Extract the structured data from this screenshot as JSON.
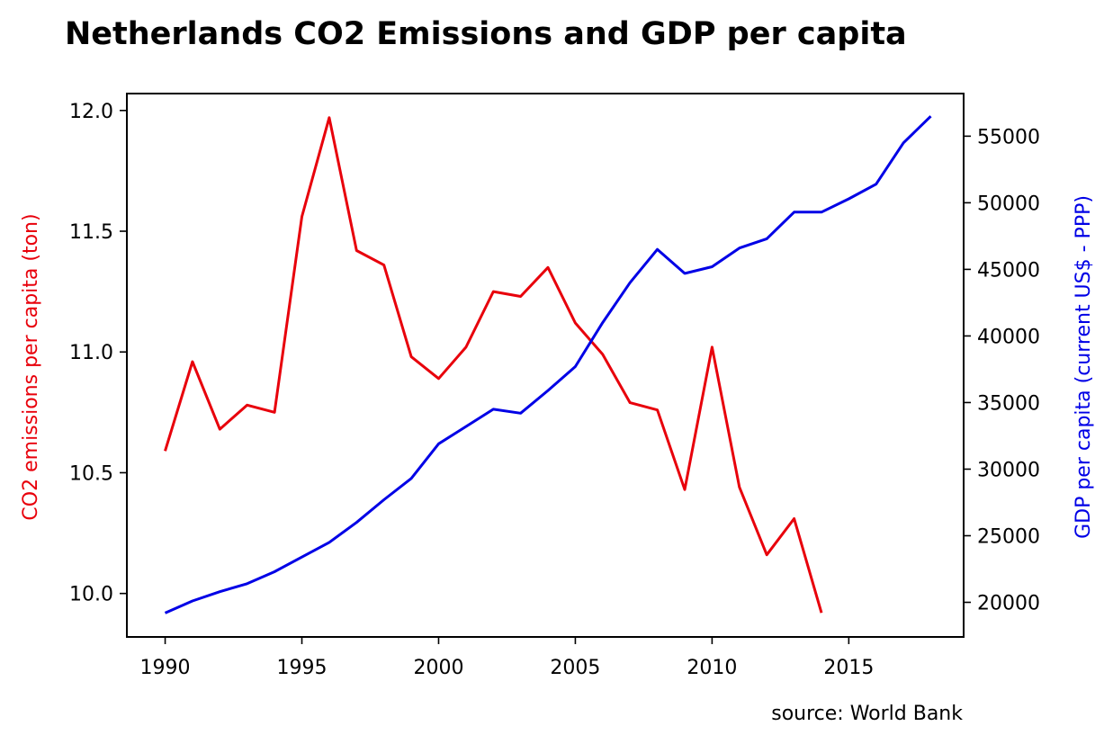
{
  "chart_data": {
    "type": "line",
    "title": "Netherlands CO2 Emissions and GDP per capita",
    "source": "source: World Bank",
    "grid": false,
    "x": [
      1990,
      1991,
      1992,
      1993,
      1994,
      1995,
      1996,
      1997,
      1998,
      1999,
      2000,
      2001,
      2002,
      2003,
      2004,
      2005,
      2006,
      2007,
      2008,
      2009,
      2010,
      2011,
      2012,
      2013,
      2014,
      2015,
      2016,
      2017,
      2018
    ],
    "x_ticks": [
      1990,
      1995,
      2000,
      2005,
      2010,
      2015
    ],
    "xlim": [
      1988.6,
      2019.2
    ],
    "left_axis": {
      "label": "CO2 emissions per capita (ton)",
      "color": "#e8000b",
      "ticks": [
        10.0,
        10.5,
        11.0,
        11.5,
        12.0
      ],
      "tick_labels": [
        "10.0",
        "10.5",
        "11.0",
        "11.5",
        "12.0"
      ],
      "ylim": [
        9.82,
        12.07
      ]
    },
    "right_axis": {
      "label": "GDP per capita (current US$ - PPP)",
      "color": "#0000e6",
      "ticks": [
        20000,
        25000,
        30000,
        35000,
        40000,
        45000,
        50000,
        55000
      ],
      "tick_labels": [
        "20000",
        "25000",
        "30000",
        "35000",
        "40000",
        "45000",
        "50000",
        "55000"
      ],
      "ylim": [
        17400,
        58200
      ]
    },
    "series": [
      {
        "name": "CO2 emissions per capita (ton)",
        "axis": "left",
        "color": "#e8000b",
        "x": [
          1990,
          1991,
          1992,
          1993,
          1994,
          1995,
          1996,
          1997,
          1998,
          1999,
          2000,
          2001,
          2002,
          2003,
          2004,
          2005,
          2006,
          2007,
          2008,
          2009,
          2010,
          2011,
          2012,
          2013,
          2014
        ],
        "values": [
          10.59,
          10.96,
          10.68,
          10.78,
          10.75,
          11.56,
          11.97,
          11.42,
          11.36,
          10.98,
          10.89,
          11.02,
          11.25,
          11.23,
          11.35,
          11.12,
          10.99,
          10.79,
          10.76,
          10.43,
          11.02,
          10.44,
          10.16,
          10.31,
          9.92
        ]
      },
      {
        "name": "GDP per capita (current US$ - PPP)",
        "axis": "right",
        "color": "#0000e6",
        "x": [
          1990,
          1991,
          1992,
          1993,
          1994,
          1995,
          1996,
          1997,
          1998,
          1999,
          2000,
          2001,
          2002,
          2003,
          2004,
          2005,
          2006,
          2007,
          2008,
          2009,
          2010,
          2011,
          2012,
          2013,
          2014,
          2015,
          2016,
          2017,
          2018
        ],
        "values": [
          19200,
          20100,
          20800,
          21400,
          22300,
          23400,
          24500,
          26000,
          27700,
          29300,
          31900,
          33200,
          34500,
          34200,
          35900,
          37700,
          41000,
          44000,
          46500,
          44700,
          45200,
          46600,
          47300,
          49300,
          49300,
          50300,
          51400,
          54500,
          56500
        ]
      }
    ]
  }
}
